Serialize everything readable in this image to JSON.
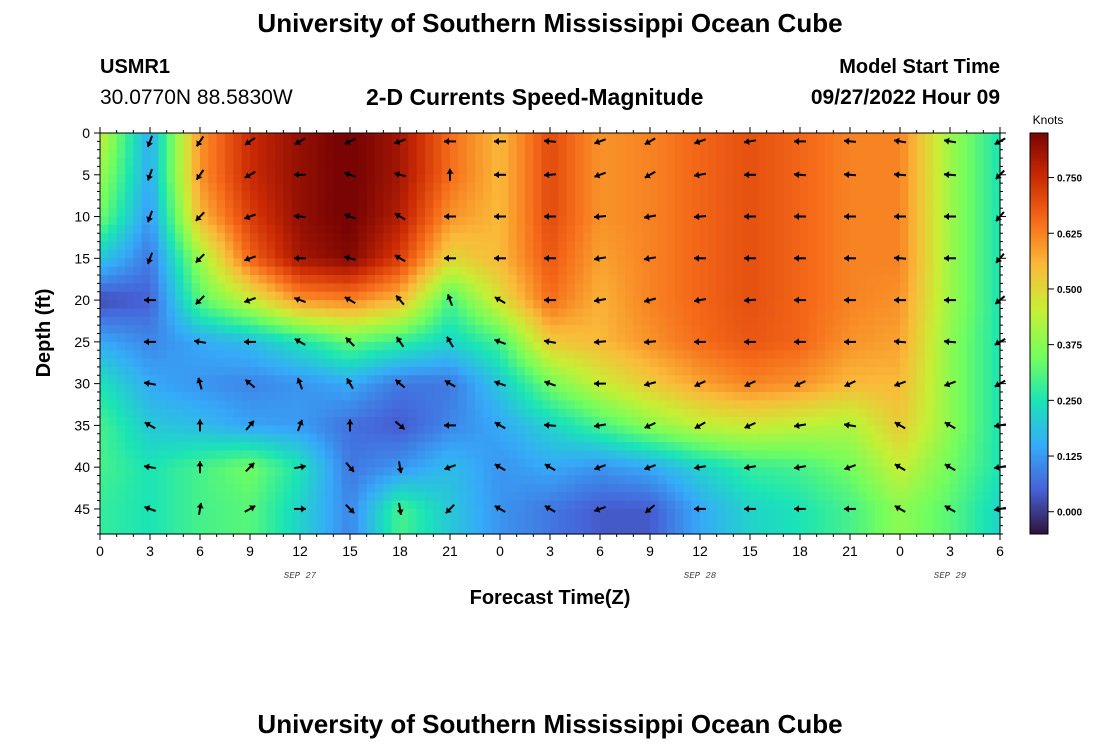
{
  "header": {
    "title": "University of Southern Mississippi Ocean Cube",
    "station": "USMR1",
    "coords": "30.0770N  88.5830W",
    "subtitle": "2-D Currents Speed-Magnitude",
    "model_start_label": "Model Start Time",
    "model_start_value": "09/27/2022 Hour 09"
  },
  "footer": {
    "title": "University of Southern Mississippi Ocean Cube"
  },
  "colors": {
    "scale": [
      "#30123b",
      "#4662d7",
      "#36aaf9",
      "#1ae4b6",
      "#72fe5e",
      "#c7ef34",
      "#faba39",
      "#f66b19",
      "#cb2a04",
      "#7a0403"
    ]
  },
  "chart_data": {
    "type": "heatmap",
    "title": "2-D Currents Speed-Magnitude",
    "xlabel": "Forecast Time(Z)",
    "ylabel": "Depth (ft)",
    "x_tick_labels": [
      "0",
      "3",
      "6",
      "9",
      "12",
      "15",
      "18",
      "21",
      "0",
      "3",
      "6",
      "9",
      "12",
      "15",
      "18",
      "21",
      "0",
      "3",
      "6"
    ],
    "y_ticks": [
      0,
      5,
      10,
      15,
      20,
      25,
      30,
      35,
      40,
      45
    ],
    "y_tick_labels": [
      "0",
      "5",
      "10",
      "15",
      "20",
      "25",
      "30",
      "35",
      "40",
      "45"
    ],
    "ylim": [
      0,
      48
    ],
    "x_hours": [
      0,
      54
    ],
    "day_labels": [
      "SEP 27",
      "SEP 28",
      "SEP 29"
    ],
    "day_label_hours": [
      12,
      36,
      51
    ],
    "colorbar": {
      "unit": "Knots",
      "range": [
        -0.05,
        0.85
      ],
      "ticks": [
        0.0,
        0.125,
        0.25,
        0.375,
        0.5,
        0.625,
        0.75
      ],
      "tick_labels": [
        "0.000",
        "0.125",
        "0.250",
        "0.375",
        "0.500",
        "0.625",
        "0.750"
      ]
    },
    "speed_grid": {
      "hours": [
        0,
        3,
        6,
        9,
        12,
        15,
        18,
        21,
        24,
        27,
        30,
        33,
        36,
        39,
        42,
        45,
        48,
        51,
        54
      ],
      "depths": [
        0,
        5,
        10,
        15,
        20,
        25,
        30,
        35,
        40,
        45,
        48
      ],
      "values": [
        [
          0.45,
          0.15,
          0.6,
          0.75,
          0.82,
          0.86,
          0.8,
          0.65,
          0.55,
          0.7,
          0.6,
          0.62,
          0.66,
          0.69,
          0.66,
          0.62,
          0.62,
          0.4,
          0.25
        ],
        [
          0.4,
          0.15,
          0.6,
          0.75,
          0.82,
          0.86,
          0.8,
          0.65,
          0.55,
          0.7,
          0.6,
          0.62,
          0.66,
          0.69,
          0.66,
          0.62,
          0.62,
          0.4,
          0.25
        ],
        [
          0.35,
          0.12,
          0.55,
          0.72,
          0.82,
          0.86,
          0.78,
          0.6,
          0.55,
          0.7,
          0.6,
          0.62,
          0.66,
          0.69,
          0.66,
          0.62,
          0.62,
          0.4,
          0.25
        ],
        [
          0.2,
          0.08,
          0.4,
          0.66,
          0.8,
          0.84,
          0.72,
          0.5,
          0.55,
          0.68,
          0.58,
          0.62,
          0.66,
          0.69,
          0.66,
          0.62,
          0.62,
          0.4,
          0.25
        ],
        [
          0.02,
          0.05,
          0.32,
          0.45,
          0.6,
          0.62,
          0.55,
          0.3,
          0.48,
          0.65,
          0.56,
          0.62,
          0.66,
          0.69,
          0.66,
          0.62,
          0.6,
          0.4,
          0.25
        ],
        [
          0.15,
          0.1,
          0.15,
          0.18,
          0.25,
          0.33,
          0.28,
          0.22,
          0.3,
          0.52,
          0.55,
          0.6,
          0.65,
          0.68,
          0.66,
          0.6,
          0.58,
          0.38,
          0.25
        ],
        [
          0.25,
          0.15,
          0.12,
          0.1,
          0.12,
          0.15,
          0.08,
          0.08,
          0.2,
          0.35,
          0.45,
          0.52,
          0.58,
          0.62,
          0.6,
          0.55,
          0.55,
          0.38,
          0.25
        ],
        [
          0.3,
          0.2,
          0.18,
          0.14,
          0.13,
          0.07,
          0.04,
          0.1,
          0.15,
          0.22,
          0.3,
          0.38,
          0.44,
          0.46,
          0.44,
          0.42,
          0.52,
          0.38,
          0.25
        ],
        [
          0.3,
          0.25,
          0.3,
          0.35,
          0.25,
          0.08,
          0.12,
          0.18,
          0.12,
          0.15,
          0.12,
          0.15,
          0.22,
          0.28,
          0.3,
          0.35,
          0.45,
          0.35,
          0.25
        ],
        [
          0.28,
          0.25,
          0.3,
          0.32,
          0.22,
          0.1,
          0.3,
          0.2,
          0.12,
          0.08,
          0.04,
          0.04,
          0.15,
          0.22,
          0.25,
          0.3,
          0.38,
          0.32,
          0.22
        ],
        [
          0.28,
          0.25,
          0.3,
          0.32,
          0.22,
          0.1,
          0.3,
          0.2,
          0.12,
          0.08,
          0.04,
          0.04,
          0.15,
          0.22,
          0.25,
          0.3,
          0.38,
          0.32,
          0.22
        ]
      ]
    },
    "vectors": {
      "hours": [
        3,
        6,
        9,
        12,
        15,
        18,
        21,
        24,
        27,
        30,
        33,
        36,
        39,
        42,
        45,
        48,
        51,
        54
      ],
      "depths": [
        1,
        5,
        10,
        15,
        20,
        25,
        30,
        35,
        40,
        45
      ],
      "direction_deg": [
        [
          200,
          215,
          235,
          240,
          245,
          250,
          270,
          270,
          275,
          250,
          240,
          250,
          260,
          270,
          275,
          280,
          280,
          240
        ],
        [
          200,
          215,
          240,
          270,
          290,
          285,
          0,
          270,
          265,
          250,
          240,
          260,
          270,
          275,
          275,
          275,
          275,
          225
        ],
        [
          200,
          225,
          250,
          275,
          290,
          300,
          270,
          270,
          270,
          265,
          260,
          265,
          270,
          270,
          270,
          270,
          270,
          220
        ],
        [
          200,
          225,
          250,
          270,
          285,
          300,
          270,
          270,
          270,
          260,
          260,
          270,
          270,
          270,
          270,
          275,
          270,
          220
        ],
        [
          270,
          225,
          250,
          290,
          300,
          320,
          340,
          300,
          270,
          260,
          255,
          260,
          265,
          270,
          270,
          270,
          270,
          230
        ],
        [
          270,
          280,
          270,
          300,
          315,
          325,
          330,
          290,
          280,
          265,
          265,
          270,
          270,
          270,
          270,
          275,
          275,
          240
        ],
        [
          280,
          345,
          310,
          340,
          330,
          310,
          300,
          290,
          290,
          270,
          255,
          245,
          245,
          245,
          245,
          250,
          250,
          240
        ],
        [
          300,
          0,
          40,
          20,
          0,
          130,
          270,
          300,
          275,
          260,
          245,
          240,
          245,
          260,
          280,
          300,
          300,
          260
        ],
        [
          280,
          0,
          45,
          80,
          140,
          170,
          250,
          300,
          300,
          250,
          250,
          260,
          260,
          260,
          250,
          300,
          300,
          260
        ],
        [
          290,
          10,
          60,
          90,
          135,
          170,
          225,
          300,
          300,
          250,
          230,
          270,
          270,
          270,
          270,
          300,
          300,
          260
        ]
      ]
    }
  }
}
